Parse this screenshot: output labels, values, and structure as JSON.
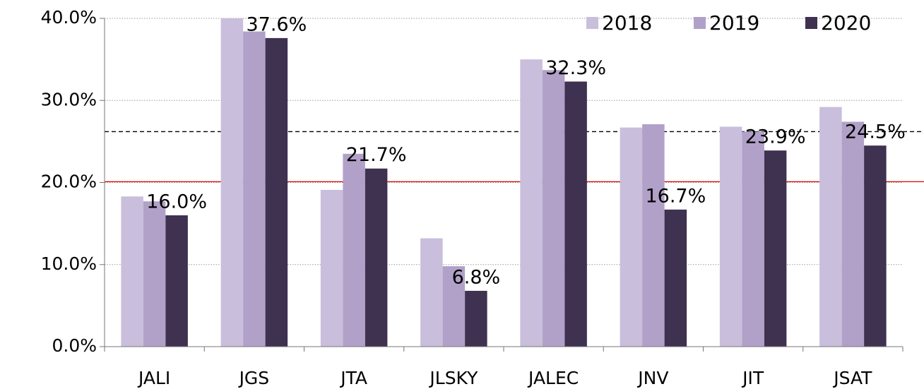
{
  "chart_data": {
    "type": "bar",
    "categories": [
      "JALI",
      "JGS",
      "JTA",
      "JLSKY",
      "JALEC",
      "JNV",
      "JIT",
      "JSAT"
    ],
    "series": [
      {
        "name": "2018",
        "color": "#c9bedb",
        "values": [
          18.3,
          40.0,
          19.1,
          13.2,
          35.0,
          26.7,
          26.8,
          29.2
        ]
      },
      {
        "name": "2019",
        "color": "#b1a1c8",
        "values": [
          17.7,
          38.4,
          23.5,
          9.8,
          33.7,
          27.1,
          26.2,
          27.4
        ]
      },
      {
        "name": "2020",
        "color": "#3f3150",
        "values": [
          16.0,
          37.6,
          21.7,
          6.8,
          32.3,
          16.7,
          23.9,
          24.5
        ],
        "value_labels": [
          "16.0%",
          "37.6%",
          "21.7%",
          "6.8%",
          "32.3%",
          "16.7%",
          "23.9%",
          "24.5%"
        ]
      }
    ],
    "reference_lines": [
      {
        "value": 26.2,
        "color": "#000000",
        "style": "dashed"
      },
      {
        "value": 20.1,
        "color": "#e00000",
        "style": "solid"
      }
    ],
    "ylim": [
      0,
      40
    ],
    "yticks": [
      {
        "value": 0,
        "label": "0.0%"
      },
      {
        "value": 10,
        "label": "10.0%"
      },
      {
        "value": 20,
        "label": "20.0%"
      },
      {
        "value": 30,
        "label": "30.0%"
      },
      {
        "value": 40,
        "label": "40.0%"
      }
    ],
    "grid": true,
    "legend": "top-right"
  }
}
